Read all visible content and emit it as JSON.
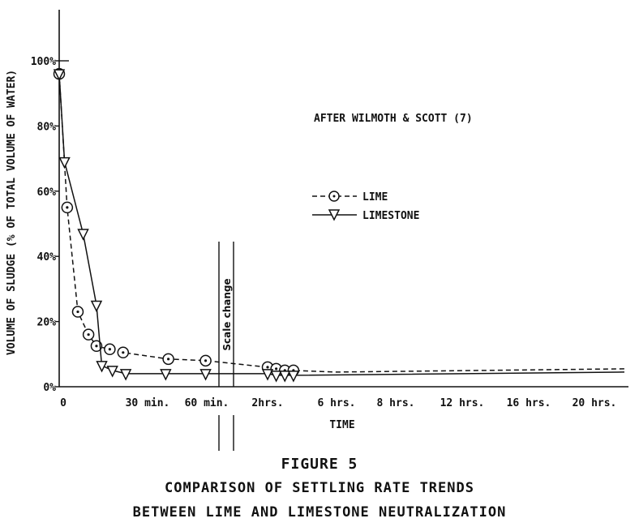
{
  "figure": {
    "number": "FIGURE 5",
    "title_line1": "COMPARISON OF SETTLING RATE TRENDS",
    "title_line2": "BETWEEN LIME AND LIMESTONE NEUTRALIZATION"
  },
  "chart_data": {
    "type": "line",
    "xlabel": "TIME",
    "ylabel": "VOLUME OF SLUDGE (% OF TOTAL VOLUME OF WATER)",
    "annotation": "AFTER WILMOTH & SCOTT (7)",
    "scale_change_label": "Scale change",
    "ylim": [
      0,
      100
    ],
    "y_ticks": [
      "0%",
      "20%",
      "40%",
      "60%",
      "80%",
      "100%"
    ],
    "y_tick_values": [
      0,
      20,
      40,
      60,
      80,
      100
    ],
    "x_ticks": [
      "0",
      "30 min.",
      "60 min.",
      "2hrs.",
      "6 hrs.",
      "8 hrs.",
      "12 hrs.",
      "16 hrs.",
      "20 hrs."
    ],
    "x_scale_note": "0–60 min linear; axis scale changes after 60 min",
    "legend_position": "center-right",
    "series": [
      {
        "name": "LIME",
        "style": "dashed",
        "marker": "circle-dot",
        "points": [
          {
            "t": "0 min",
            "y": 96
          },
          {
            "t": "3 min",
            "y": 55
          },
          {
            "t": "7 min",
            "y": 23
          },
          {
            "t": "11 min",
            "y": 16
          },
          {
            "t": "14 min",
            "y": 12.5
          },
          {
            "t": "19 min",
            "y": 11.5
          },
          {
            "t": "24 min",
            "y": 10.5
          },
          {
            "t": "41 min",
            "y": 8.5
          },
          {
            "t": "55 min",
            "y": 8
          },
          {
            "t": "2 hrs",
            "y": 6
          },
          {
            "t": "2.5 hrs",
            "y": 5.5
          },
          {
            "t": "3 hrs",
            "y": 5
          },
          {
            "t": "3.5 hrs",
            "y": 5
          },
          {
            "t": "6 hrs",
            "y": 4.5
          },
          {
            "t": "22 hrs",
            "y": 5.5
          }
        ]
      },
      {
        "name": "LIMESTONE",
        "style": "solid",
        "marker": "triangle-down",
        "points": [
          {
            "t": "0 min",
            "y": 96
          },
          {
            "t": "2 min",
            "y": 69
          },
          {
            "t": "9 min",
            "y": 47
          },
          {
            "t": "14 min",
            "y": 25
          },
          {
            "t": "16 min",
            "y": 6.5
          },
          {
            "t": "20 min",
            "y": 5
          },
          {
            "t": "25 min",
            "y": 4
          },
          {
            "t": "40 min",
            "y": 4
          },
          {
            "t": "55 min",
            "y": 4
          },
          {
            "t": "2 hrs",
            "y": 4
          },
          {
            "t": "2.5 hrs",
            "y": 3.5
          },
          {
            "t": "3 hrs",
            "y": 3.5
          },
          {
            "t": "3.5 hrs",
            "y": 3.5
          },
          {
            "t": "22 hrs",
            "y": 4.5
          }
        ]
      }
    ]
  }
}
